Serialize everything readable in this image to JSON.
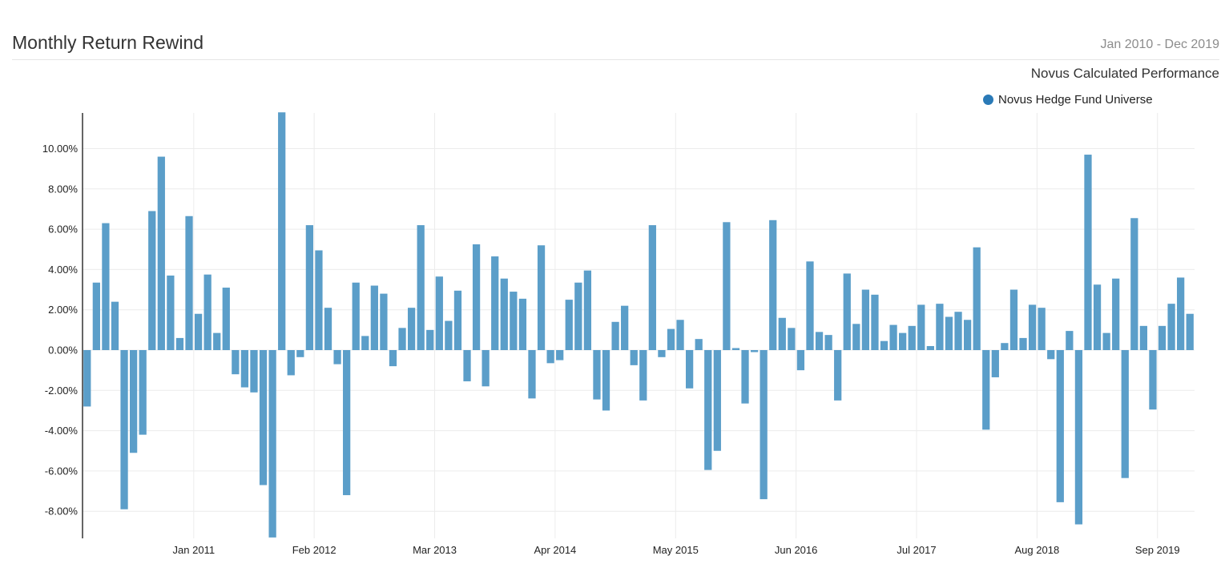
{
  "header": {
    "title": "Monthly Return Rewind",
    "date_range": "Jan 2010 - Dec 2019",
    "subtitle": "Novus Calculated Performance"
  },
  "colors": {
    "bar": "#5b9ec9",
    "legend_dot": "#2a7ab7",
    "grid": "#ececec",
    "axis": "#333333"
  },
  "chart_data": {
    "type": "bar",
    "title": "Monthly Return Rewind",
    "xlabel": "",
    "ylabel": "",
    "ylim": [
      -9.3,
      11.8
    ],
    "y_ticks": [
      -8,
      -6,
      -4,
      -2,
      0,
      2,
      4,
      6,
      8,
      10
    ],
    "y_tick_labels": [
      "-8.00%",
      "-6.00%",
      "-4.00%",
      "-2.00%",
      "0.00%",
      "2.00%",
      "4.00%",
      "6.00%",
      "8.00%",
      "10.00%"
    ],
    "grid": true,
    "legend_position": "top-right",
    "x_tick_labels": [
      {
        "label": "Jan 2011",
        "index": 12
      },
      {
        "label": "Feb 2012",
        "index": 25
      },
      {
        "label": "Mar 2013",
        "index": 38
      },
      {
        "label": "Apr 2014",
        "index": 51
      },
      {
        "label": "May 2015",
        "index": 64
      },
      {
        "label": "Jun 2016",
        "index": 77
      },
      {
        "label": "Jul 2017",
        "index": 90
      },
      {
        "label": "Aug 2018",
        "index": 103
      },
      {
        "label": "Sep 2019",
        "index": 116
      }
    ],
    "series": [
      {
        "name": "Novus Hedge Fund Universe",
        "values": [
          -2.8,
          3.35,
          6.3,
          2.4,
          -7.9,
          -5.1,
          -4.2,
          6.9,
          9.6,
          3.7,
          0.6,
          6.65,
          1.8,
          3.75,
          0.85,
          3.1,
          -1.2,
          -1.85,
          -2.1,
          -6.7,
          -9.3,
          11.8,
          -1.25,
          -0.35,
          6.2,
          4.95,
          2.1,
          -0.7,
          -7.2,
          3.35,
          0.7,
          3.2,
          2.8,
          -0.8,
          1.1,
          2.1,
          6.2,
          1.0,
          3.65,
          1.45,
          2.95,
          -1.55,
          5.25,
          -1.8,
          4.65,
          3.55,
          2.9,
          2.55,
          -2.4,
          5.2,
          -0.65,
          -0.5,
          2.5,
          3.35,
          3.95,
          -2.45,
          -3.0,
          1.4,
          2.2,
          -0.75,
          -2.5,
          6.2,
          -0.35,
          1.05,
          1.5,
          -1.9,
          0.55,
          -5.95,
          -5.0,
          6.35,
          0.1,
          -2.65,
          -0.1,
          -7.4,
          6.45,
          1.6,
          1.1,
          -1.0,
          4.4,
          0.9,
          0.75,
          -2.5,
          3.8,
          1.3,
          3.0,
          2.75,
          0.45,
          1.25,
          0.85,
          1.2,
          2.25,
          0.2,
          2.3,
          1.65,
          1.9,
          1.5,
          5.1,
          -3.95,
          -1.35,
          0.35,
          3.0,
          0.6,
          2.25,
          2.1,
          -0.45,
          -7.55,
          0.95,
          -8.65,
          9.7,
          3.25,
          0.85,
          3.55,
          -6.35,
          6.55,
          1.2,
          -2.95,
          1.2,
          2.3,
          3.6,
          1.8
        ]
      }
    ]
  }
}
